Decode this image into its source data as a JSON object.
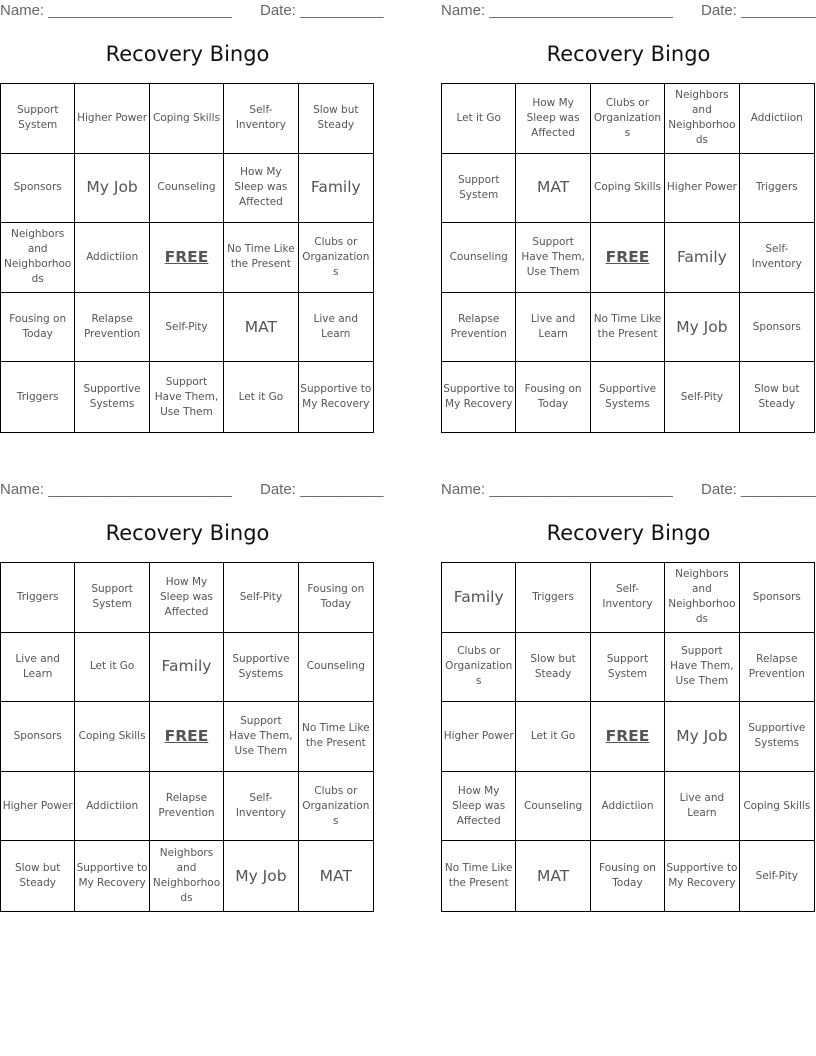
{
  "name_label": "Name: ______________________",
  "date_label": "Date: __________",
  "title": "Recovery Bingo",
  "cards": [
    {
      "cells": [
        "Support System",
        "Higher Power",
        "Coping Skills",
        "Self-Inventory",
        "Slow but Steady",
        "Sponsors",
        "My Job",
        "Counseling",
        "How My Sleep was Affected",
        "Family",
        "Neighbors and Neighborhoods",
        "Addictiion",
        "FREE",
        "No Time Like the Present",
        "Clubs or Organizations",
        "Fousing on Today",
        "Relapse Prevention",
        "Self-Pity",
        "MAT",
        "Live and Learn",
        "Triggers",
        "Supportive Systems",
        "Support Have Them, Use Them",
        "Let it Go",
        "Supportive to My Recovery"
      ]
    },
    {
      "cells": [
        "Let it Go",
        "How My Sleep was Affected",
        "Clubs or Organizations",
        "Neighbors and Neighborhoods",
        "Addictiion",
        "Support System",
        "MAT",
        "Coping Skills",
        "Higher Power",
        "Triggers",
        "Counseling",
        "Support Have Them, Use Them",
        "FREE",
        "Family",
        "Self-Inventory",
        "Relapse Prevention",
        "Live and Learn",
        "No Time Like the Present",
        "My Job",
        "Sponsors",
        "Supportive to My Recovery",
        "Fousing on Today",
        "Supportive Systems",
        "Self-Pity",
        "Slow but Steady"
      ]
    },
    {
      "cells": [
        "Triggers",
        "Support System",
        "How My Sleep was Affected",
        "Self-Pity",
        "Fousing on Today",
        "Live and Learn",
        "Let it Go",
        "Family",
        "Supportive Systems",
        "Counseling",
        "Sponsors",
        "Coping Skills",
        "FREE",
        "Support Have Them, Use Them",
        "No Time Like the Present",
        "Higher Power",
        "Addictiion",
        "Relapse Prevention",
        "Self-Inventory",
        "Clubs or Organizations",
        "Slow but Steady",
        "Supportive to My Recovery",
        "Neighbors and Neighborhoods",
        "My Job",
        "MAT"
      ]
    },
    {
      "cells": [
        "Family",
        "Triggers",
        "Self-Inventory",
        "Neighbors and Neighborhoods",
        "Sponsors",
        "Clubs or Organizations",
        "Slow but Steady",
        "Support System",
        "Support Have Them, Use Them",
        "Relapse Prevention",
        "Higher Power",
        "Let it Go",
        "FREE",
        "My Job",
        "Supportive Systems",
        "How My Sleep was Affected",
        "Counseling",
        "Addictiion",
        "Live and Learn",
        "Coping Skills",
        "No Time Like the Present",
        "MAT",
        "Fousing on Today",
        "Supportive to My Recovery",
        "Self-Pity"
      ]
    }
  ]
}
